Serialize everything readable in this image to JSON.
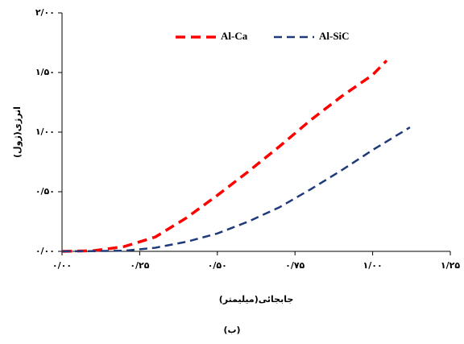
{
  "chart_data": {
    "type": "line",
    "xlabel": "جابجائی(میلیمتر)",
    "ylabel": "انرژی(ژول)",
    "caption": "(ب)",
    "xlim": [
      0,
      1.25
    ],
    "ylim": [
      0,
      2
    ],
    "xticks": [
      {
        "value": 0,
        "label": "۰/۰۰"
      },
      {
        "value": 0.25,
        "label": "۰/۲۵"
      },
      {
        "value": 0.5,
        "label": "۰/۵۰"
      },
      {
        "value": 0.75,
        "label": "۰/۷۵"
      },
      {
        "value": 1,
        "label": "۱/۰۰"
      },
      {
        "value": 1.25,
        "label": "۱/۲۵"
      }
    ],
    "yticks": [
      {
        "value": 0,
        "label": "۰/۰۰"
      },
      {
        "value": 0.5,
        "label": "۰/۵۰"
      },
      {
        "value": 1,
        "label": "۱/۰۰"
      },
      {
        "value": 1.5,
        "label": "۱/۵۰"
      },
      {
        "value": 2,
        "label": "۲/۰۰"
      }
    ],
    "grid": false,
    "legend": "top",
    "series": [
      {
        "name": "Al-Ca",
        "color": "#ff0000",
        "x": [
          0,
          0.1,
          0.2,
          0.3,
          0.4,
          0.5,
          0.6,
          0.7,
          0.8,
          0.9,
          1.0,
          1.045
        ],
        "values": [
          0,
          0.005,
          0.04,
          0.12,
          0.28,
          0.47,
          0.67,
          0.88,
          1.1,
          1.3,
          1.48,
          1.6
        ]
      },
      {
        "name": "Al-SiC",
        "color": "#1f3a7a",
        "x": [
          0,
          0.2,
          0.3,
          0.4,
          0.5,
          0.6,
          0.7,
          0.8,
          0.9,
          1.0,
          1.12
        ],
        "values": [
          0,
          0.005,
          0.03,
          0.08,
          0.15,
          0.25,
          0.37,
          0.52,
          0.68,
          0.85,
          1.04
        ]
      }
    ]
  }
}
